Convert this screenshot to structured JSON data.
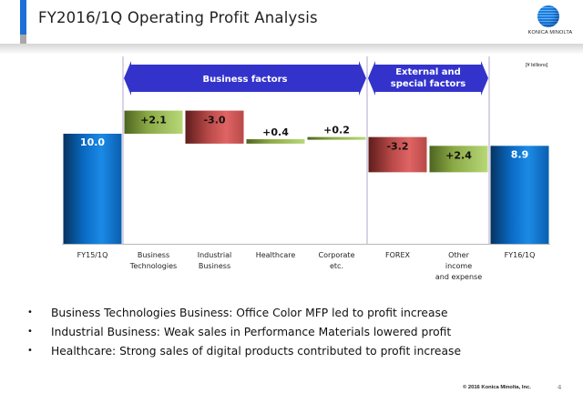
{
  "header": {
    "title": "FY2016/1Q Operating Profit Analysis",
    "logo_text": "KONICA MINOLTA"
  },
  "chart_data": {
    "type": "bar",
    "subtype": "waterfall",
    "title": "FY2016/1Q Operating Profit Analysis",
    "unit_label": "[¥ billions]",
    "categories": [
      "FY15/1Q",
      "Business\nTechnologies",
      "Industrial\nBusiness",
      "Healthcare",
      "Corporate\netc.",
      "FOREX",
      "Other\nincome\nand expense",
      "FY16/1Q"
    ],
    "values": [
      10.0,
      2.1,
      -3.0,
      0.4,
      0.2,
      -3.2,
      2.4,
      8.9
    ],
    "kinds": [
      "total",
      "delta",
      "delta",
      "delta",
      "delta",
      "delta",
      "delta",
      "total"
    ],
    "labels": [
      "10.0",
      "+2.1",
      "-3.0",
      "+0.4",
      "+0.2",
      "-3.2",
      "+2.4",
      "8.9"
    ],
    "ylim": [
      0,
      13
    ],
    "grid": false,
    "groups": [
      {
        "label": "Business factors",
        "from_index": 1,
        "to_index": 4
      },
      {
        "label": "External and\nspecial factors",
        "from_index": 5,
        "to_index": 6
      }
    ],
    "colors": {
      "total": "#0a6ac4",
      "increase": "#8db04a",
      "decrease": "#c9504f",
      "group_arrow": "#3333cc",
      "divider": "#c0b6d6"
    }
  },
  "bullets": [
    "Business Technologies Business: Office Color MFP led to profit increase",
    "Industrial Business: Weak sales in Performance Materials lowered profit",
    "Healthcare: Strong sales of digital products contributed to profit increase"
  ],
  "footer": {
    "copyright": "© 2016 Konica Minolta, Inc.",
    "page_number": "4"
  }
}
